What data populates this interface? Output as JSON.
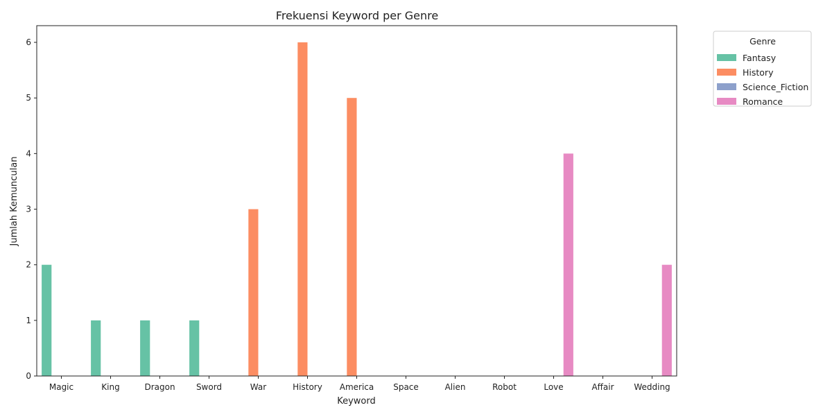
{
  "chart_data": {
    "type": "bar",
    "title": "Frekuensi Keyword per Genre",
    "xlabel": "Keyword",
    "ylabel": "Jumlah Kemunculan",
    "ylim": [
      0,
      6.3
    ],
    "yticks": [
      0,
      1,
      2,
      3,
      4,
      5,
      6
    ],
    "categories": [
      "Magic",
      "King",
      "Dragon",
      "Sword",
      "War",
      "History",
      "America",
      "Space",
      "Alien",
      "Robot",
      "Love",
      "Affair",
      "Wedding"
    ],
    "series": [
      {
        "name": "Fantasy",
        "color": "#66c2a5",
        "values": [
          2,
          1,
          1,
          1,
          0,
          0,
          0,
          0,
          0,
          0,
          0,
          0,
          0
        ]
      },
      {
        "name": "History",
        "color": "#fc8d62",
        "values": [
          0,
          0,
          0,
          0,
          3,
          6,
          5,
          0,
          0,
          0,
          0,
          0,
          0
        ]
      },
      {
        "name": "Science_Fiction",
        "color": "#8da0cb",
        "values": [
          0,
          0,
          0,
          0,
          0,
          0,
          0,
          0,
          0,
          0,
          0,
          0,
          0
        ]
      },
      {
        "name": "Romance",
        "color": "#e78ac3",
        "values": [
          0,
          0,
          0,
          0,
          0,
          0,
          0,
          0,
          0,
          0,
          4,
          0,
          2
        ]
      }
    ],
    "legend": {
      "title": "Genre",
      "placement": "outside-top-right"
    },
    "grid": false
  }
}
